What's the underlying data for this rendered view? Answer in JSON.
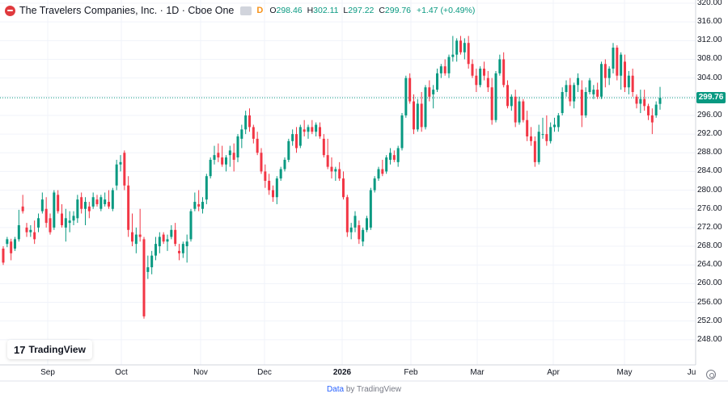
{
  "header": {
    "title": "The Travelers Companies, Inc. · 1D · Cboe One",
    "flag": "D",
    "open_label": "O",
    "open": "298.46",
    "high_label": "H",
    "high": "302.11",
    "low_label": "L",
    "low": "297.22",
    "close_label": "C",
    "close": "299.76",
    "change": "+1.47 (+0.49%)"
  },
  "colors": {
    "up": "#089981",
    "down": "#f23645",
    "grid": "#f0f3fa",
    "axis_text": "#131722"
  },
  "price_badge": "299.76",
  "watermark": {
    "mark": "17",
    "text": "TradingView"
  },
  "footer": {
    "data_link": "Data",
    "by_text": "by TradingView"
  },
  "chart_data": {
    "type": "candlestick",
    "ylim": [
      244,
      320
    ],
    "y_ticks": [
      "320.00",
      "316.00",
      "312.00",
      "308.00",
      "304.00",
      "300.00",
      "296.00",
      "292.00",
      "288.00",
      "284.00",
      "280.00",
      "276.00",
      "272.00",
      "268.00",
      "264.00",
      "260.00",
      "256.00",
      "252.00",
      "248.00"
    ],
    "x_ticks": [
      "Sep",
      "Oct",
      "Nov",
      "Dec",
      "2026",
      "Feb",
      "Mar",
      "Apr",
      "May",
      "Ju"
    ],
    "last_price": 299.76,
    "grid": true,
    "ohlc": [
      [
        267.5,
        268.0,
        264.0,
        264.5
      ],
      [
        268.5,
        270.0,
        267.8,
        269.5
      ],
      [
        269.0,
        269.6,
        265.0,
        266.5
      ],
      [
        267.5,
        270.0,
        267.0,
        269.5
      ],
      [
        269.5,
        275.8,
        269.0,
        272.5
      ],
      [
        276.5,
        279.0,
        275.0,
        275.5
      ],
      [
        272.0,
        273.0,
        270.0,
        271.0
      ],
      [
        271.0,
        272.5,
        270.0,
        271.5
      ],
      [
        271.0,
        273.5,
        268.5,
        269.5
      ],
      [
        272.0,
        275.0,
        271.0,
        274.0
      ],
      [
        275.5,
        279.5,
        275.0,
        278.0
      ],
      [
        276.0,
        278.5,
        272.0,
        273.0
      ],
      [
        274.0,
        275.0,
        270.5,
        271.0
      ],
      [
        272.0,
        280.0,
        271.5,
        279.5
      ],
      [
        279.0,
        280.0,
        275.0,
        275.5
      ],
      [
        275.0,
        277.0,
        272.0,
        272.5
      ],
      [
        272.0,
        276.0,
        269.0,
        274.0
      ],
      [
        273.0,
        275.5,
        271.0,
        273.5
      ],
      [
        273.5,
        275.5,
        272.5,
        274.5
      ],
      [
        274.0,
        279.0,
        273.0,
        278.0
      ],
      [
        278.5,
        279.5,
        275.0,
        276.0
      ],
      [
        276.0,
        278.5,
        272.5,
        277.5
      ],
      [
        276.5,
        277.5,
        274.0,
        275.5
      ],
      [
        276.5,
        279.5,
        276.0,
        278.5
      ],
      [
        278.0,
        279.0,
        276.5,
        277.0
      ],
      [
        276.0,
        279.0,
        275.5,
        278.5
      ],
      [
        277.0,
        279.5,
        276.5,
        278.0
      ],
      [
        277.5,
        280.0,
        276.0,
        276.5
      ],
      [
        276.0,
        280.5,
        275.5,
        280.0
      ],
      [
        281.0,
        286.5,
        280.0,
        285.5
      ],
      [
        285.5,
        287.5,
        284.0,
        286.0
      ],
      [
        288.0,
        288.5,
        280.0,
        281.0
      ],
      [
        281.0,
        283.0,
        270.0,
        271.5
      ],
      [
        271.0,
        275.0,
        268.0,
        269.0
      ],
      [
        268.5,
        272.0,
        266.5,
        270.5
      ],
      [
        270.5,
        276.0,
        269.0,
        270.0
      ],
      [
        269.5,
        270.0,
        252.5,
        253.0
      ],
      [
        262.5,
        266.0,
        261.0,
        263.5
      ],
      [
        263.5,
        267.0,
        262.0,
        266.0
      ],
      [
        266.0,
        270.0,
        265.0,
        268.5
      ],
      [
        268.0,
        271.0,
        266.5,
        270.0
      ],
      [
        270.5,
        271.0,
        268.5,
        269.0
      ],
      [
        269.0,
        270.5,
        267.0,
        269.5
      ],
      [
        270.0,
        272.5,
        269.5,
        271.5
      ],
      [
        271.5,
        273.0,
        268.0,
        268.5
      ],
      [
        267.0,
        268.5,
        265.0,
        266.5
      ],
      [
        266.5,
        269.0,
        265.5,
        268.5
      ],
      [
        268.0,
        270.5,
        264.5,
        269.0
      ],
      [
        269.5,
        276.0,
        269.0,
        275.5
      ],
      [
        276.0,
        279.5,
        275.5,
        277.5
      ],
      [
        277.0,
        280.0,
        275.5,
        276.5
      ],
      [
        276.0,
        278.5,
        275.0,
        277.5
      ],
      [
        278.0,
        283.5,
        277.0,
        283.0
      ],
      [
        283.0,
        287.0,
        282.5,
        286.5
      ],
      [
        286.5,
        289.5,
        285.5,
        287.5
      ],
      [
        288.0,
        290.0,
        286.0,
        287.0
      ],
      [
        287.0,
        289.5,
        285.0,
        285.5
      ],
      [
        285.5,
        287.5,
        284.0,
        287.0
      ],
      [
        287.5,
        289.5,
        285.0,
        288.5
      ],
      [
        288.0,
        290.0,
        284.0,
        286.5
      ],
      [
        287.0,
        292.0,
        286.0,
        291.5
      ],
      [
        291.0,
        294.0,
        289.0,
        293.0
      ],
      [
        293.0,
        297.0,
        292.0,
        296.0
      ],
      [
        296.0,
        297.5,
        292.5,
        293.5
      ],
      [
        293.5,
        294.0,
        290.0,
        291.0
      ],
      [
        291.0,
        292.5,
        287.5,
        288.0
      ],
      [
        288.0,
        289.0,
        283.5,
        284.0
      ],
      [
        284.0,
        285.5,
        280.5,
        282.0
      ],
      [
        282.0,
        283.5,
        279.0,
        280.0
      ],
      [
        280.0,
        281.0,
        277.5,
        278.5
      ],
      [
        278.5,
        283.0,
        277.0,
        282.5
      ],
      [
        282.5,
        285.0,
        282.0,
        284.5
      ],
      [
        284.5,
        287.0,
        284.0,
        286.5
      ],
      [
        286.5,
        291.0,
        286.0,
        290.5
      ],
      [
        290.5,
        293.0,
        289.5,
        292.0
      ],
      [
        292.0,
        293.5,
        288.0,
        289.0
      ],
      [
        289.5,
        294.0,
        289.0,
        293.5
      ],
      [
        293.0,
        295.0,
        291.5,
        292.5
      ],
      [
        292.5,
        294.0,
        291.0,
        293.5
      ],
      [
        293.5,
        295.0,
        292.0,
        292.5
      ],
      [
        292.5,
        294.5,
        291.5,
        294.0
      ],
      [
        293.5,
        294.5,
        291.0,
        291.5
      ],
      [
        291.0,
        292.0,
        287.0,
        287.5
      ],
      [
        287.5,
        291.0,
        284.5,
        285.0
      ],
      [
        285.0,
        287.0,
        282.5,
        284.0
      ],
      [
        284.0,
        285.0,
        282.0,
        284.5
      ],
      [
        284.5,
        286.0,
        282.0,
        282.5
      ],
      [
        282.5,
        284.0,
        278.0,
        278.5
      ],
      [
        278.5,
        279.0,
        270.0,
        271.0
      ],
      [
        271.0,
        273.0,
        269.5,
        272.0
      ],
      [
        272.0,
        275.5,
        271.0,
        274.5
      ],
      [
        272.5,
        273.5,
        268.5,
        269.5
      ],
      [
        269.0,
        272.0,
        268.0,
        271.5
      ],
      [
        271.5,
        274.5,
        271.0,
        274.0
      ],
      [
        272.0,
        280.5,
        271.5,
        280.0
      ],
      [
        280.0,
        283.0,
        279.5,
        282.5
      ],
      [
        282.5,
        285.0,
        282.0,
        284.5
      ],
      [
        284.5,
        286.5,
        283.0,
        283.5
      ],
      [
        284.0,
        287.5,
        283.5,
        287.0
      ],
      [
        286.5,
        289.0,
        285.5,
        288.0
      ],
      [
        287.5,
        288.5,
        286.0,
        286.5
      ],
      [
        286.0,
        289.5,
        285.0,
        289.0
      ],
      [
        289.0,
        296.5,
        288.5,
        296.0
      ],
      [
        296.0,
        304.5,
        295.5,
        304.0
      ],
      [
        304.0,
        305.0,
        298.5,
        299.0
      ],
      [
        299.0,
        300.5,
        292.0,
        293.0
      ],
      [
        293.0,
        299.5,
        292.5,
        298.5
      ],
      [
        298.5,
        301.0,
        292.5,
        293.5
      ],
      [
        293.5,
        302.5,
        293.0,
        302.0
      ],
      [
        302.0,
        303.5,
        299.0,
        300.0
      ],
      [
        300.5,
        302.5,
        297.5,
        301.5
      ],
      [
        301.5,
        306.0,
        301.0,
        305.0
      ],
      [
        305.0,
        307.0,
        304.0,
        306.5
      ],
      [
        306.5,
        308.0,
        304.5,
        305.0
      ],
      [
        305.0,
        309.0,
        304.0,
        308.5
      ],
      [
        308.5,
        313.0,
        307.5,
        309.0
      ],
      [
        309.0,
        312.5,
        307.5,
        312.0
      ],
      [
        312.0,
        313.0,
        309.0,
        309.5
      ],
      [
        309.5,
        312.5,
        308.0,
        311.5
      ],
      [
        311.5,
        313.0,
        306.0,
        307.0
      ],
      [
        307.0,
        308.0,
        304.0,
        304.5
      ],
      [
        304.5,
        306.0,
        301.0,
        302.5
      ],
      [
        302.5,
        306.5,
        302.0,
        306.0
      ],
      [
        306.0,
        307.5,
        303.5,
        304.5
      ],
      [
        304.0,
        305.5,
        301.0,
        302.0
      ],
      [
        302.0,
        304.0,
        294.0,
        295.0
      ],
      [
        295.0,
        305.5,
        294.5,
        305.0
      ],
      [
        305.0,
        309.0,
        304.5,
        308.0
      ],
      [
        308.0,
        309.5,
        302.0,
        302.5
      ],
      [
        302.5,
        303.5,
        297.5,
        298.0
      ],
      [
        298.0,
        300.5,
        297.0,
        300.0
      ],
      [
        300.0,
        301.5,
        293.5,
        294.5
      ],
      [
        294.5,
        300.0,
        294.0,
        299.0
      ],
      [
        299.0,
        299.5,
        294.5,
        295.0
      ],
      [
        295.0,
        297.0,
        290.5,
        291.5
      ],
      [
        291.5,
        293.5,
        289.5,
        290.5
      ],
      [
        290.5,
        291.5,
        285.0,
        286.0
      ],
      [
        286.0,
        294.0,
        285.5,
        292.5
      ],
      [
        292.0,
        295.5,
        291.0,
        292.0
      ],
      [
        292.0,
        296.0,
        289.5,
        290.5
      ],
      [
        290.5,
        294.5,
        290.0,
        293.5
      ],
      [
        293.5,
        295.5,
        292.5,
        294.0
      ],
      [
        293.5,
        296.5,
        292.5,
        296.0
      ],
      [
        296.5,
        302.0,
        296.0,
        301.0
      ],
      [
        301.0,
        303.5,
        300.0,
        302.5
      ],
      [
        302.5,
        304.0,
        298.0,
        299.0
      ],
      [
        299.0,
        303.0,
        297.5,
        302.5
      ],
      [
        302.5,
        305.0,
        301.0,
        304.0
      ],
      [
        301.5,
        303.5,
        293.5,
        296.0
      ],
      [
        296.0,
        302.0,
        295.5,
        301.0
      ],
      [
        301.0,
        304.0,
        300.5,
        303.5
      ],
      [
        300.5,
        302.5,
        299.5,
        301.5
      ],
      [
        301.5,
        303.0,
        299.5,
        300.0
      ],
      [
        300.0,
        307.5,
        299.5,
        307.0
      ],
      [
        307.0,
        308.0,
        302.0,
        304.0
      ],
      [
        304.0,
        306.5,
        302.5,
        306.0
      ],
      [
        306.0,
        311.5,
        305.0,
        310.5
      ],
      [
        310.5,
        311.0,
        303.5,
        304.5
      ],
      [
        304.5,
        309.5,
        301.5,
        309.0
      ],
      [
        307.5,
        309.0,
        301.0,
        302.0
      ],
      [
        302.0,
        305.5,
        300.5,
        304.5
      ],
      [
        304.5,
        306.0,
        300.0,
        301.0
      ],
      [
        300.0,
        300.5,
        297.5,
        298.5
      ],
      [
        298.5,
        301.5,
        296.5,
        299.5
      ],
      [
        299.5,
        301.5,
        297.0,
        298.0
      ],
      [
        298.0,
        298.5,
        295.0,
        296.0
      ],
      [
        296.0,
        297.5,
        292.0,
        294.5
      ],
      [
        296.0,
        299.0,
        295.5,
        298.3
      ],
      [
        298.46,
        302.11,
        297.22,
        299.76
      ]
    ]
  }
}
